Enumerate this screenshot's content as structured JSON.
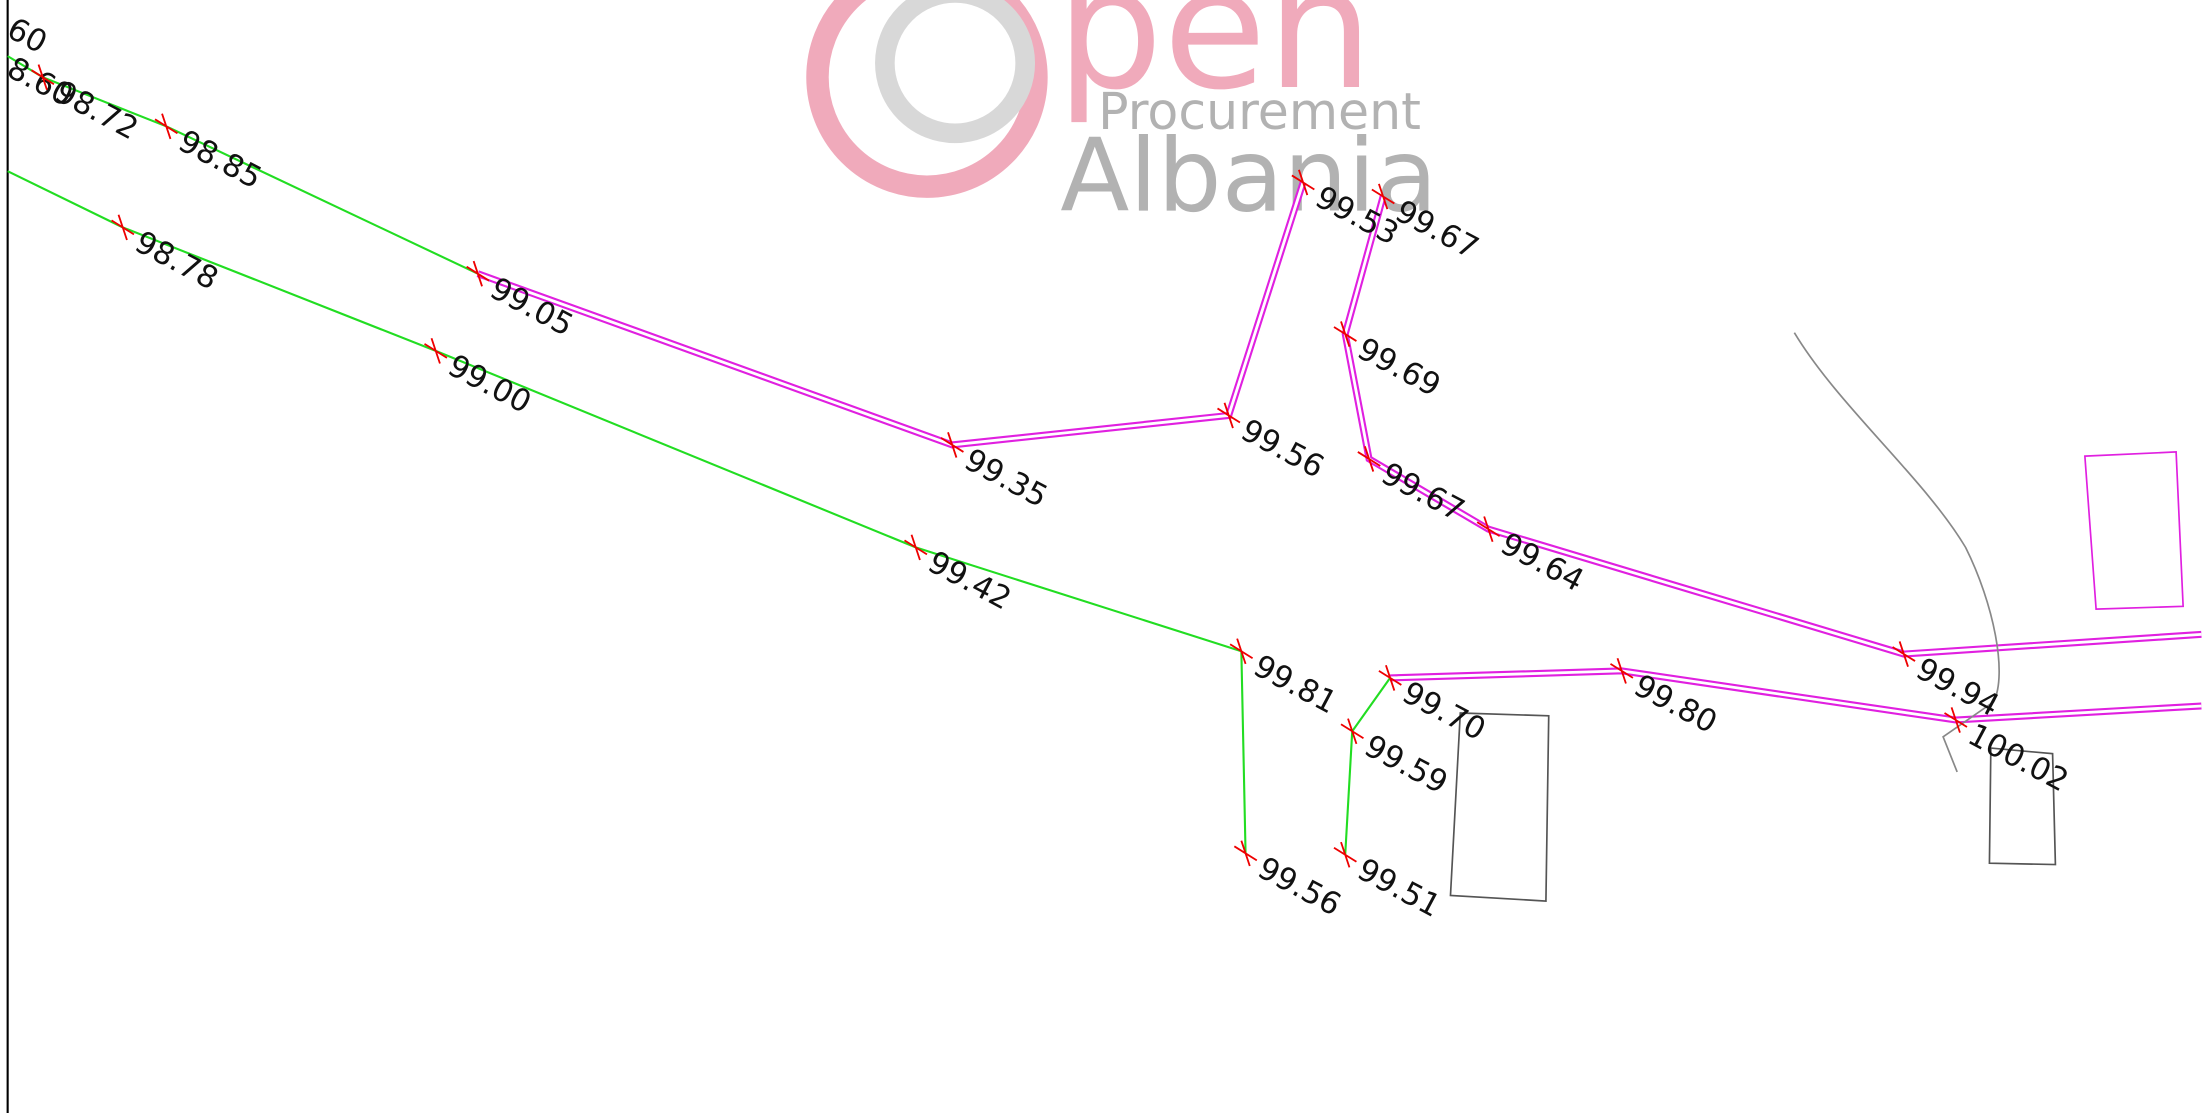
{
  "watermark": {
    "word": "pen",
    "line1": "Procurement",
    "line2": "Albania"
  },
  "labels": [
    "60",
    "8.60",
    "98.72",
    "98.85",
    "98.78",
    "99.05",
    "99.00",
    "99.35",
    "99.42",
    "99.56",
    "99.53",
    "99.67",
    "99.69",
    "99.67",
    "99.64",
    "99.81",
    "99.70",
    "99.59",
    "99.56",
    "99.51",
    "99.80",
    "99.94",
    "100.02"
  ]
}
